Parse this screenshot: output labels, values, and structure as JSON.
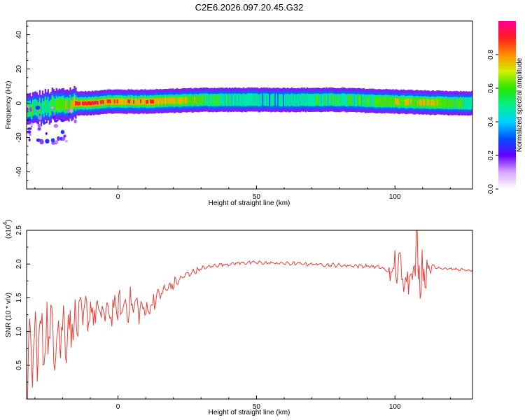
{
  "title": "C2E6.2026.097.20.45.G32",
  "chart_data": [
    {
      "type": "heatmap",
      "xlabel": "Height of straight line (km)",
      "ylabel": "Frequency (Hz)",
      "xlim": [
        -33,
        128
      ],
      "ylim": [
        -50,
        48
      ],
      "x_ticks": [
        0,
        50,
        100
      ],
      "y_ticks": [
        -40,
        -20,
        0,
        20,
        40
      ],
      "colorbar": {
        "label": "Normalized spectral amplitude",
        "range": [
          0,
          1
        ],
        "ticks": [
          "0.0",
          "0.2",
          "0.4",
          "0.6",
          "0.8"
        ],
        "tick_values": [
          0.0,
          0.2,
          0.4,
          0.6,
          0.8
        ]
      },
      "ridge": {
        "x": [
          -33,
          -25,
          -20,
          -15,
          -10,
          -5,
          0,
          10,
          20,
          30,
          40,
          50,
          60,
          70,
          80,
          90,
          100,
          110,
          120,
          128
        ],
        "center_freq_hz": [
          -4,
          -2,
          -1,
          0,
          0,
          1,
          1,
          1,
          1.5,
          2,
          2,
          2,
          2,
          2,
          2,
          1.5,
          1,
          0.5,
          0,
          0
        ],
        "peak_amplitude": [
          0.6,
          0.65,
          0.75,
          0.95,
          1.0,
          0.95,
          0.9,
          0.95,
          0.85,
          0.7,
          0.6,
          0.55,
          0.55,
          0.6,
          0.65,
          0.7,
          0.75,
          0.85,
          0.7,
          0.6
        ]
      }
    },
    {
      "type": "line",
      "xlabel": "Height of straight line (km)",
      "ylabel": "SNR (10 * v/v)",
      "multiplier_label": "(x10",
      "multiplier_exp": "4",
      "multiplier_close": ")",
      "xlim": [
        -33,
        128
      ],
      "ylim": [
        0,
        2.5
      ],
      "x_ticks": [
        0,
        50,
        100
      ],
      "y_ticks": [
        0.5,
        1.0,
        1.5,
        2.0,
        2.5
      ],
      "y_tick_labels": [
        "0.5",
        "1.0",
        "1.5",
        "2.0",
        "2.5"
      ],
      "series": [
        {
          "name": "SNR",
          "color": "#e8403a",
          "x": [
            -33,
            -30,
            -25,
            -20,
            -15,
            -10,
            -5,
            0,
            5,
            10,
            15,
            20,
            25,
            30,
            35,
            40,
            45,
            50,
            60,
            70,
            80,
            90,
            95,
            97,
            99,
            101,
            103,
            106,
            108,
            110,
            112,
            115,
            120,
            128
          ],
          "y": [
            0.4,
            0.8,
            1.0,
            1.0,
            1.15,
            1.3,
            1.25,
            1.35,
            1.4,
            1.3,
            1.55,
            1.7,
            1.85,
            1.93,
            1.98,
            2.0,
            2.02,
            2.02,
            2.01,
            2.0,
            1.98,
            1.97,
            1.95,
            1.9,
            1.85,
            2.0,
            1.8,
            1.9,
            2.1,
            1.85,
            1.95,
            1.95,
            1.93,
            1.9
          ],
          "noise_amplitude": [
            0.6,
            0.6,
            0.6,
            0.55,
            0.35,
            0.3,
            0.3,
            0.25,
            0.25,
            0.2,
            0.2,
            0.1,
            0.06,
            0.04,
            0.03,
            0.03,
            0.03,
            0.03,
            0.03,
            0.03,
            0.03,
            0.03,
            0.03,
            0.03,
            0.35,
            0.3,
            0.3,
            0.35,
            0.5,
            0.55,
            0.1,
            0.03,
            0.02,
            0.02
          ]
        }
      ]
    }
  ],
  "colors": {
    "snr_line": "#e8403a",
    "axis": "#000000"
  }
}
